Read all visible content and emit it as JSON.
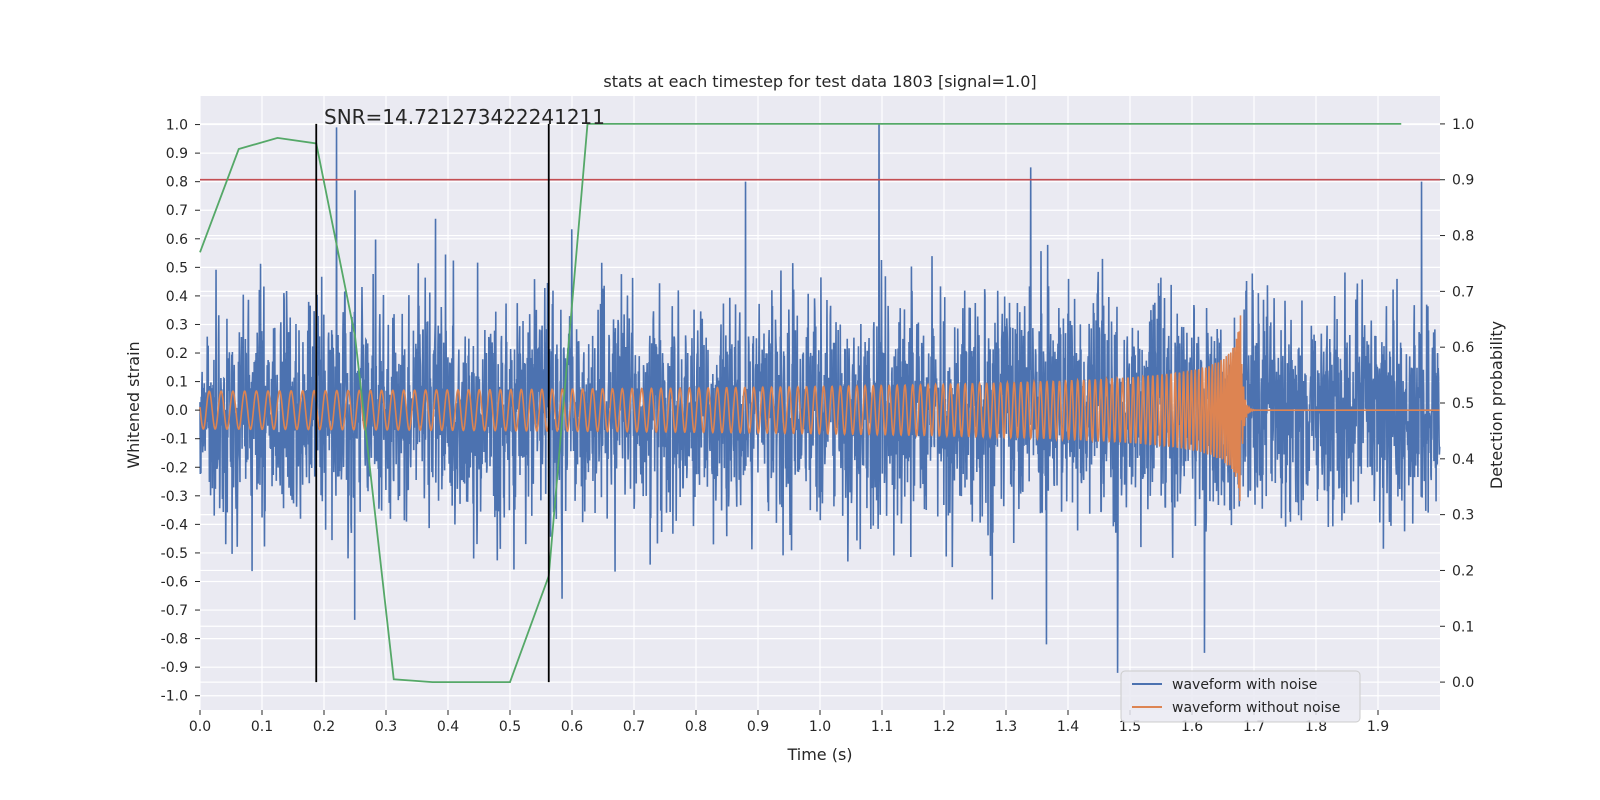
{
  "chart_data": {
    "type": "line",
    "title": "stats at each timestep for test data 1803 [signal=1.0]",
    "xlabel": "Time (s)",
    "ylabel": "Whitened strain",
    "ylabel_right": "Detection probability",
    "xlim": [
      0.0,
      2.0
    ],
    "ylim": [
      -1.05,
      1.1
    ],
    "ylim_right": [
      -0.05,
      1.05
    ],
    "x_ticks": [
      "0.0",
      "0.1",
      "0.2",
      "0.3",
      "0.4",
      "0.5",
      "0.6",
      "0.7",
      "0.8",
      "0.9",
      "1.0",
      "1.1",
      "1.2",
      "1.3",
      "1.4",
      "1.5",
      "1.6",
      "1.7",
      "1.8",
      "1.9"
    ],
    "y_ticks": [
      "1.0",
      "0.9",
      "0.8",
      "0.7",
      "0.6",
      "0.5",
      "0.4",
      "0.3",
      "0.2",
      "0.1",
      "0.0",
      "-0.1",
      "-0.2",
      "-0.3",
      "-0.4",
      "-0.5",
      "-0.6",
      "-0.7",
      "-0.8",
      "-0.9",
      "-1.0"
    ],
    "y_ticks_right": [
      "1.0",
      "0.9",
      "0.8",
      "0.7",
      "0.6",
      "0.5",
      "0.4",
      "0.3",
      "0.2",
      "0.1",
      "0.0"
    ],
    "annotation": "SNR=14.721273422241211",
    "threshold_right": 0.9,
    "vertical_lines": [
      0.1875,
      0.5625
    ],
    "detection_probability": {
      "x": [
        0.0,
        0.0625,
        0.125,
        0.1875,
        0.25,
        0.3125,
        0.375,
        0.4375,
        0.5,
        0.5625,
        0.625,
        0.6875,
        0.75,
        1.0,
        1.25,
        1.5,
        1.75,
        1.9375
      ],
      "y": [
        0.77,
        0.955,
        0.975,
        0.965,
        0.62,
        0.005,
        0.0,
        0.0,
        0.0,
        0.19,
        1.0,
        1.0,
        1.0,
        1.0,
        1.0,
        1.0,
        1.0,
        1.0
      ]
    },
    "noise_spikes": [
      {
        "x": 0.22,
        "y": 0.99
      },
      {
        "x": 0.25,
        "y": 0.77
      },
      {
        "x": 0.38,
        "y": 0.67
      },
      {
        "x": 0.88,
        "y": 0.8
      },
      {
        "x": 1.095,
        "y": 1.0
      },
      {
        "x": 1.34,
        "y": 0.85
      },
      {
        "x": 1.365,
        "y": -0.82
      },
      {
        "x": 1.48,
        "y": -0.92
      },
      {
        "x": 1.62,
        "y": -0.85
      },
      {
        "x": 1.97,
        "y": 0.8
      }
    ],
    "series": [
      {
        "name": "waveform with noise",
        "color": "#4c72b0"
      },
      {
        "name": "waveform without noise",
        "color": "#dd8452"
      }
    ],
    "colors": {
      "probability": "#55a868",
      "threshold": "#c44e52",
      "vlines": "#000000",
      "plot_bg": "#eaeaf2",
      "grid": "#ffffff"
    },
    "legend_position": "lower-right"
  }
}
